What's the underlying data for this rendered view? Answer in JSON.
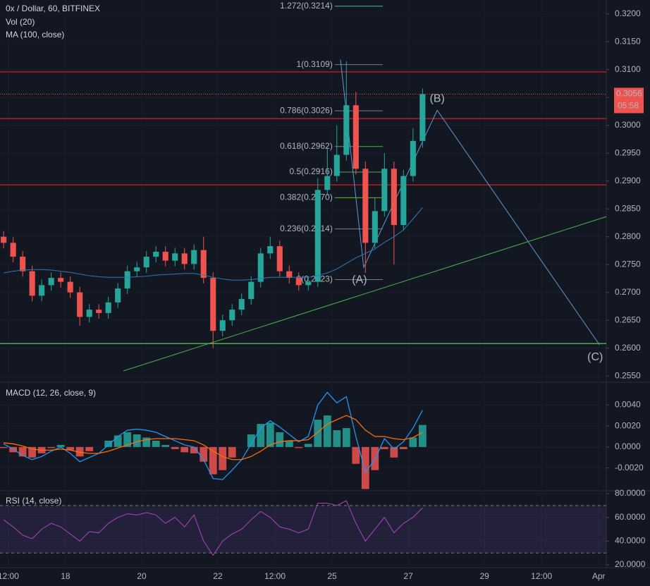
{
  "chart_data": [
    {
      "type": "candlestick",
      "title": "0x / Dollar, 60, BITFINEX",
      "subtitle": "Vol (20)",
      "candles": {
        "x": [
          16.375,
          16.625,
          16.875,
          17.125,
          17.375,
          17.625,
          17.875,
          18.125,
          18.375,
          18.625,
          18.875,
          19.125,
          19.375,
          19.625,
          19.875,
          20.125,
          20.375,
          20.625,
          20.875,
          21.125,
          21.375,
          21.625,
          21.875,
          22.125,
          22.375,
          22.625,
          22.875,
          23.125,
          23.375,
          23.625,
          23.875,
          24.125,
          24.375,
          24.625,
          24.875,
          25.125,
          25.375,
          25.625,
          25.875,
          26.125,
          26.375,
          26.625,
          26.875,
          27.125,
          27.375
        ],
        "open": [
          0.28,
          0.2789,
          0.2764,
          0.2738,
          0.2694,
          0.2713,
          0.2726,
          0.2719,
          0.27,
          0.2656,
          0.2669,
          0.2663,
          0.2682,
          0.2707,
          0.2738,
          0.2745,
          0.2764,
          0.2773,
          0.2757,
          0.277,
          0.2751,
          0.2776,
          0.2726,
          0.2631,
          0.265,
          0.2669,
          0.2688,
          0.2719,
          0.277,
          0.2783,
          0.2738,
          0.2726,
          0.2713,
          0.2719,
          0.2884,
          0.2909,
          0.2947,
          0.3036,
          0.2922,
          0.2789,
          0.2846,
          0.2922,
          0.2821,
          0.2909,
          0.2972
        ],
        "high": [
          0.281,
          0.2799,
          0.2774,
          0.2748,
          0.2723,
          0.2736,
          0.2736,
          0.2729,
          0.271,
          0.2679,
          0.2679,
          0.2692,
          0.2717,
          0.2748,
          0.2755,
          0.2774,
          0.2783,
          0.2783,
          0.278,
          0.278,
          0.2786,
          0.28,
          0.2736,
          0.266,
          0.2679,
          0.2698,
          0.2729,
          0.278,
          0.28,
          0.2793,
          0.2748,
          0.2736,
          0.2729,
          0.2905,
          0.296,
          0.3,
          0.3115,
          0.306,
          0.2935,
          0.287,
          0.295,
          0.2935,
          0.292,
          0.2995,
          0.3066
        ],
        "low": [
          0.2779,
          0.2754,
          0.2728,
          0.2684,
          0.2684,
          0.2703,
          0.2709,
          0.269,
          0.264,
          0.2646,
          0.2653,
          0.2653,
          0.2672,
          0.2697,
          0.2728,
          0.2735,
          0.2754,
          0.2747,
          0.2747,
          0.2741,
          0.2741,
          0.2716,
          0.26,
          0.2621,
          0.264,
          0.2659,
          0.2678,
          0.2709,
          0.276,
          0.2728,
          0.2716,
          0.2703,
          0.2703,
          0.271,
          0.2874,
          0.2899,
          0.2937,
          0.2912,
          0.2735,
          0.2779,
          0.2836,
          0.275,
          0.2811,
          0.2899,
          0.296
        ],
        "close": [
          0.2789,
          0.2764,
          0.2738,
          0.2694,
          0.2713,
          0.2726,
          0.2719,
          0.27,
          0.2656,
          0.2669,
          0.2663,
          0.2682,
          0.2707,
          0.2738,
          0.2745,
          0.2764,
          0.2773,
          0.2757,
          0.277,
          0.2751,
          0.2776,
          0.2726,
          0.2631,
          0.265,
          0.2669,
          0.2688,
          0.2719,
          0.277,
          0.2783,
          0.2738,
          0.2726,
          0.2713,
          0.2719,
          0.2884,
          0.2909,
          0.2947,
          0.3036,
          0.2922,
          0.2789,
          0.2846,
          0.2922,
          0.2821,
          0.2909,
          0.2972,
          0.3056
        ]
      },
      "up_color": "#26a69a",
      "down_color": "#ef5350",
      "series": [
        {
          "name": "MA (100, close)",
          "color": "#2e79b5",
          "values": [
            0.2735,
            0.2738,
            0.274,
            0.2741,
            0.2741,
            0.274,
            0.2738,
            0.2736,
            0.2733,
            0.273,
            0.2728,
            0.2727,
            0.2727,
            0.2727,
            0.2728,
            0.2729,
            0.2731,
            0.2732,
            0.2733,
            0.2734,
            0.2734,
            0.2731,
            0.2727,
            0.2724,
            0.2722,
            0.2722,
            0.2723,
            0.2725,
            0.2727,
            0.2727,
            0.2727,
            0.2727,
            0.2727,
            0.273,
            0.2735,
            0.2742,
            0.2752,
            0.2762,
            0.277,
            0.2778,
            0.279,
            0.28,
            0.2812,
            0.2832,
            0.2852
          ]
        }
      ],
      "ylim": [
        0.254,
        0.3225
      ],
      "yticks": [
        {
          "value": 0.32,
          "label": "0.3200"
        },
        {
          "value": 0.315,
          "label": "0.3150"
        },
        {
          "value": 0.31,
          "label": "0.3100"
        },
        {
          "value": 0.305,
          "label": "0.3050"
        },
        {
          "value": 0.3,
          "label": "0.3000"
        },
        {
          "value": 0.295,
          "label": "0.2950"
        },
        {
          "value": 0.29,
          "label": "0.2900"
        },
        {
          "value": 0.285,
          "label": "0.2850"
        },
        {
          "value": 0.28,
          "label": "0.2800"
        },
        {
          "value": 0.275,
          "label": "0.2750"
        },
        {
          "value": 0.27,
          "label": "0.2700"
        },
        {
          "value": 0.265,
          "label": "0.2650"
        },
        {
          "value": 0.26,
          "label": "0.2600"
        },
        {
          "value": 0.255,
          "label": "0.2550"
        }
      ],
      "hlines": [
        {
          "value": 0.3096,
          "color": "#b71c1c"
        },
        {
          "value": 0.3012,
          "color": "#b71c1c"
        },
        {
          "value": 0.2893,
          "color": "#b71c1c"
        },
        {
          "value": 0.2608,
          "color": "#4caf50"
        }
      ],
      "last_price": {
        "value": 0.3056,
        "label": "0.3056",
        "countdown": "05:58",
        "color": "#ef5350"
      },
      "fib": {
        "x": [
          25.07,
          26.33
        ],
        "levels": [
          {
            "value": 0.3214,
            "label": "1.272(0.3214)",
            "color": "#4db6ac"
          },
          {
            "value": 0.3109,
            "label": "1(0.3109)",
            "color": "#787b86"
          },
          {
            "value": 0.3026,
            "label": "0.786(0.3026)",
            "color": "#787b86"
          },
          {
            "value": 0.2962,
            "label": "0.618(0.2962)",
            "color": "#4caf50"
          },
          {
            "value": 0.2916,
            "label": "0.5(0.2916)",
            "color": "#4caf50"
          },
          {
            "value": 0.287,
            "label": "0.382(0.2870)",
            "color": "#66bb2a"
          },
          {
            "value": 0.2814,
            "label": "0.236(0.2814)",
            "color": "#787b86"
          },
          {
            "value": 0.2723,
            "label": "0(0.2723)",
            "color": "#787b86"
          }
        ]
      },
      "trendlines": [
        {
          "x": [
            19.52,
            32.2
          ],
          "y": [
            0.2559,
            0.2836
          ],
          "color": "#4caf50"
        }
      ],
      "waves": {
        "x": [
          25.22,
          25.83,
          27.76,
          32.02
        ],
        "y": [
          0.3118,
          0.2745,
          0.3027,
          0.2606
        ],
        "labels": [
          null,
          "(A)",
          "(B)",
          "(C)"
        ],
        "color": "#5b9bd5"
      }
    },
    {
      "type": "macd",
      "title": "MACD (12, 26, close, 9)",
      "macd": {
        "color": "#2196f3",
        "values": [
          0.0003,
          -0.0002,
          -0.0008,
          -0.0012,
          -0.0009,
          -0.0004,
          0.0,
          -0.0006,
          -0.0014,
          -0.001,
          -0.0006,
          0.0002,
          0.001,
          0.0016,
          0.0017,
          0.0016,
          0.0014,
          0.001,
          0.0006,
          0.0002,
          0.0,
          -0.0012,
          -0.003,
          -0.0031,
          -0.0022,
          -0.0012,
          0.0003,
          0.0018,
          0.0025,
          0.0019,
          0.0012,
          0.0005,
          0.001,
          0.004,
          0.0052,
          0.0042,
          0.0048,
          0.001,
          -0.0024,
          -0.0012,
          0.0008,
          -0.0002,
          0.0005,
          0.0018,
          0.0035
        ]
      },
      "signal": {
        "color": "#ff6d00",
        "values": [
          0.0004,
          0.0003,
          0.0001,
          -0.0002,
          -0.0003,
          -0.0003,
          -0.0002,
          -0.0003,
          -0.0005,
          -0.0006,
          -0.0006,
          -0.0004,
          -0.0001,
          0.0002,
          0.0005,
          0.0007,
          0.0008,
          0.0008,
          0.0008,
          0.0007,
          0.0006,
          0.0002,
          -0.0004,
          -0.0009,
          -0.0012,
          -0.0012,
          -0.0009,
          -0.0004,
          0.0002,
          0.0005,
          0.0006,
          0.0006,
          0.0007,
          0.0014,
          0.0022,
          0.0026,
          0.003,
          0.0026,
          0.0016,
          0.001,
          0.001,
          0.0008,
          0.0007,
          0.0009,
          0.0014
        ]
      },
      "histogram": {
        "up_color": "#26a69a",
        "down_color": "#ef5350",
        "values": [
          -0.0001,
          -0.0005,
          -0.0009,
          -0.001,
          -0.0006,
          -0.0001,
          0.0002,
          -0.0003,
          -0.0009,
          -0.0004,
          0.0,
          0.0006,
          0.0011,
          0.0014,
          0.0012,
          0.0009,
          0.0006,
          0.0002,
          -0.0002,
          -0.0005,
          -0.0006,
          -0.0014,
          -0.0026,
          -0.0022,
          -0.001,
          0.0,
          0.0012,
          0.0022,
          0.0023,
          0.0014,
          0.0006,
          -0.0001,
          0.0003,
          0.0026,
          0.003,
          0.0016,
          0.0018,
          -0.0016,
          -0.004,
          -0.0022,
          -0.0002,
          -0.001,
          -0.0002,
          0.0009,
          0.0021
        ]
      },
      "ylim": [
        -0.0041,
        0.0061
      ],
      "yticks": [
        {
          "value": 0.004,
          "label": "0.0040"
        },
        {
          "value": 0.002,
          "label": "0.0020"
        },
        {
          "value": 0,
          "label": "0.0000"
        },
        {
          "value": -0.002,
          "label": "-0.0020"
        }
      ]
    },
    {
      "type": "rsi",
      "title": "RSI (14, close)",
      "color": "#ab47bc",
      "values": [
        58,
        52,
        45,
        42,
        50,
        55,
        52,
        46,
        40,
        48,
        47,
        55,
        60,
        63,
        62,
        64,
        62,
        55,
        60,
        52,
        62,
        40,
        28,
        40,
        46,
        50,
        58,
        65,
        60,
        52,
        50,
        47,
        50,
        72,
        72,
        70,
        74,
        55,
        40,
        50,
        60,
        47,
        55,
        60,
        68
      ],
      "band": [
        30,
        70
      ],
      "band_color": "#7e57c2",
      "ylim": [
        17.6,
        81.8
      ],
      "yticks": [
        {
          "value": 80,
          "label": "80.0000"
        },
        {
          "value": 60,
          "label": "60.0000"
        },
        {
          "value": 40,
          "label": "40.0000"
        },
        {
          "value": 20,
          "label": "20.0000"
        }
      ],
      "xlim": [
        16.28,
        32.2
      ],
      "xticks": [
        {
          "value": 16.5,
          "label": "12:00"
        },
        18,
        20,
        22,
        {
          "value": 23.5,
          "label": "12:00"
        },
        25,
        27,
        29,
        {
          "value": 30.5,
          "label": "12:00"
        },
        {
          "value": 32,
          "label": "Apr"
        }
      ]
    }
  ]
}
